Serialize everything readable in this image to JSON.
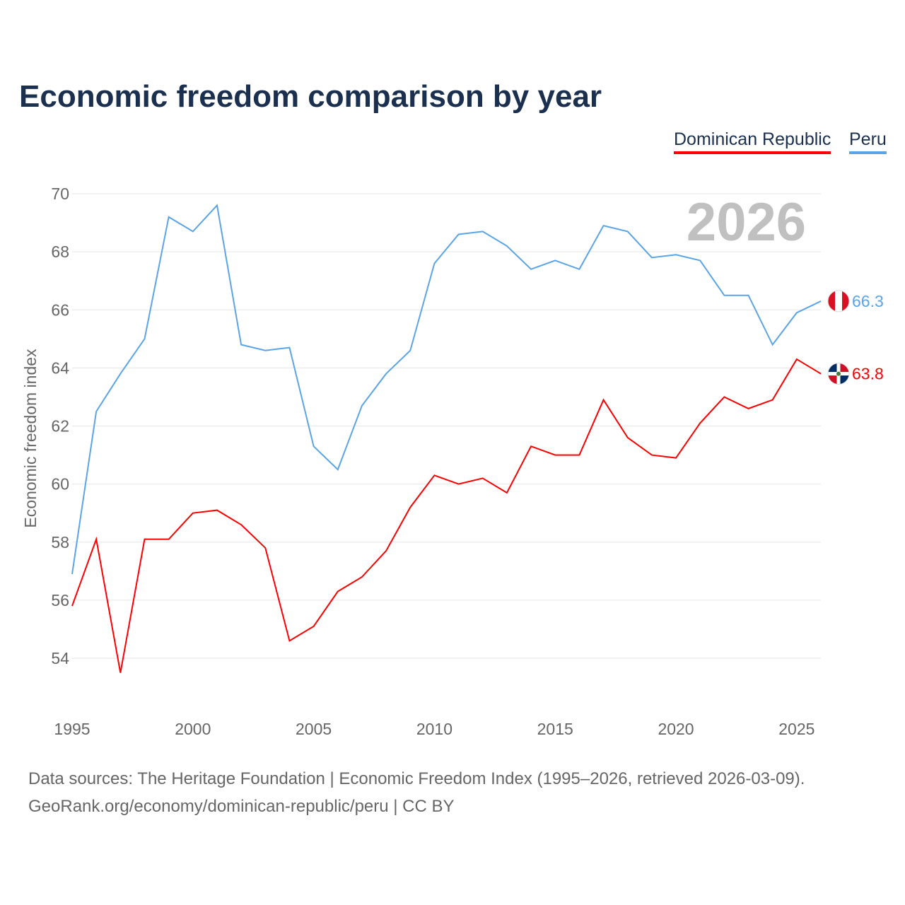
{
  "title": "Economic freedom comparison by year",
  "footer": {
    "line1": "Data sources: The Heritage Foundation | Economic Freedom Index (1995–2026, retrieved 2026-03-09).",
    "line2": "GeoRank.org/economy/dominican-republic/peru | CC BY"
  },
  "colors": {
    "dominican_republic": "#ff0000",
    "peru": "#5ba4e8"
  },
  "chart_data": {
    "type": "line",
    "title": "Economic freedom comparison by year",
    "xlabel": "",
    "ylabel": "Economic freedom index",
    "year_watermark": "2026",
    "xlim": [
      1995,
      2026
    ],
    "ylim": [
      54,
      70
    ],
    "xticks": [
      "1995",
      "2000",
      "2005",
      "2010",
      "2015",
      "2020",
      "2025"
    ],
    "yticks": [
      "54",
      "56",
      "58",
      "60",
      "62",
      "64",
      "66",
      "68",
      "70"
    ],
    "grid": true,
    "legend": "top-right",
    "x": [
      1995,
      1996,
      1997,
      1998,
      1999,
      2000,
      2001,
      2002,
      2003,
      2004,
      2005,
      2006,
      2007,
      2008,
      2009,
      2010,
      2011,
      2012,
      2013,
      2014,
      2015,
      2016,
      2017,
      2018,
      2019,
      2020,
      2021,
      2022,
      2023,
      2024,
      2025,
      2026
    ],
    "series": [
      {
        "name": "Dominican Republic",
        "end_label": "63.8",
        "values": [
          55.8,
          58.1,
          53.5,
          58.1,
          58.1,
          59.0,
          59.1,
          58.6,
          57.8,
          54.6,
          55.1,
          56.3,
          56.8,
          57.7,
          59.2,
          60.3,
          60.0,
          60.2,
          59.7,
          61.3,
          61.0,
          61.0,
          62.9,
          61.6,
          61.0,
          60.9,
          62.1,
          63.0,
          62.6,
          62.9,
          64.3,
          63.8
        ]
      },
      {
        "name": "Peru",
        "end_label": "66.3",
        "values": [
          56.9,
          62.5,
          63.8,
          65.0,
          69.2,
          68.7,
          69.6,
          64.8,
          64.6,
          64.7,
          61.3,
          60.5,
          62.7,
          63.8,
          64.6,
          67.6,
          68.6,
          68.7,
          68.2,
          67.4,
          67.7,
          67.4,
          68.9,
          68.7,
          67.8,
          67.9,
          67.7,
          66.5,
          66.5,
          64.8,
          65.9,
          66.3
        ]
      }
    ]
  }
}
